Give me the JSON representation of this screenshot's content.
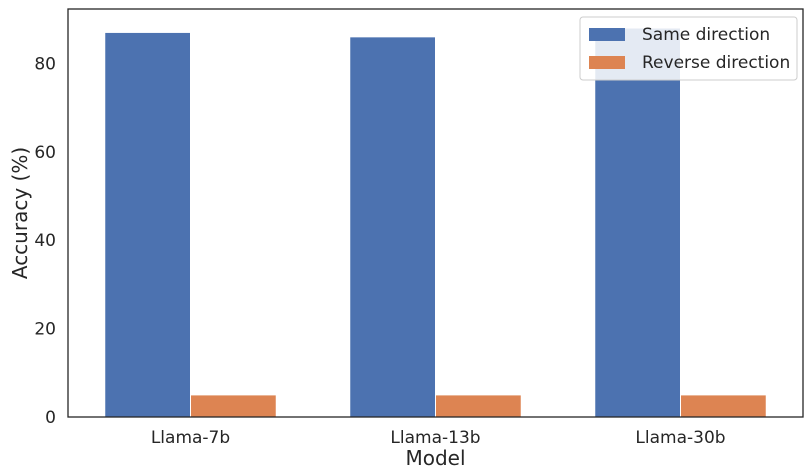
{
  "chart_data": {
    "type": "bar",
    "categories": [
      "Llama-7b",
      "Llama-13b",
      "Llama-30b"
    ],
    "series": [
      {
        "name": "Same direction",
        "values": [
          87,
          86,
          88
        ],
        "color": "#4c72b0"
      },
      {
        "name": "Reverse direction",
        "values": [
          5,
          5,
          5
        ],
        "color": "#dd8452"
      }
    ],
    "title": "",
    "xlabel": "Model",
    "ylabel": "Accuracy (%)",
    "ylim": [
      0,
      92.3
    ],
    "yticks": [
      0,
      20,
      40,
      60,
      80
    ],
    "grid": false,
    "legend_position": "top-right"
  }
}
